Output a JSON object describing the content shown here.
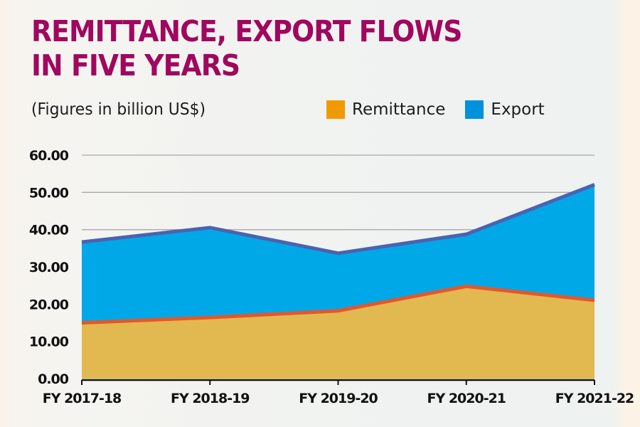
{
  "chart_data": {
    "type": "area",
    "title": "REMITTANCE, EXPORT FLOWS IN FIVE YEARS",
    "title_lines": [
      "REMITTANCE, EXPORT FLOWS",
      "IN FIVE YEARS"
    ],
    "subtitle": "(Figures in billion US$)",
    "xlabel": "",
    "ylabel": "",
    "ylim": [
      0,
      60
    ],
    "yticks": [
      0,
      10,
      20,
      30,
      40,
      50,
      60
    ],
    "ytick_labels": [
      "0.00",
      "10.00",
      "20.00",
      "30.00",
      "40.00",
      "50.00",
      "60.00"
    ],
    "categories": [
      "FY 2017-18",
      "FY 2018-19",
      "FY 2019-20",
      "FY 2020-21",
      "FY 2021-22"
    ],
    "grid": true,
    "legend_position": "top-right",
    "series": [
      {
        "name": "Export",
        "legend_label": "Export",
        "values": [
          36.67,
          40.54,
          33.67,
          38.76,
          52.08
        ],
        "fill_color": "#00a8e8",
        "line_color": "#4a63b0",
        "legend_color": "#0091dd"
      },
      {
        "name": "Remittance",
        "legend_label": "Remittance",
        "values": [
          14.98,
          16.42,
          18.21,
          24.78,
          21.03
        ],
        "fill_color": "#e2b850",
        "line_color": "#e4572a",
        "legend_color": "#f09a00"
      }
    ]
  }
}
